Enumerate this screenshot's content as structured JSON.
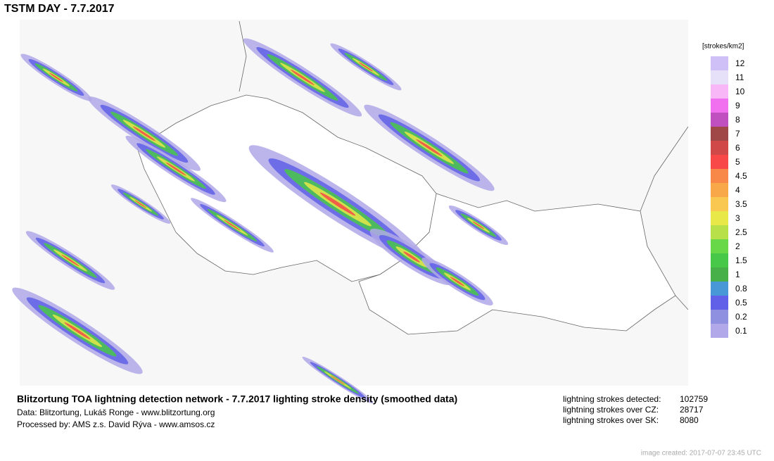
{
  "header": {
    "title": "TSTM DAY - 7.7.2017"
  },
  "legend": {
    "unit": "[strokes/km2]",
    "items": [
      {
        "label": "12",
        "color": "#d0c0f8"
      },
      {
        "label": "11",
        "color": "#e6e0f8"
      },
      {
        "label": "10",
        "color": "#f8b8f8"
      },
      {
        "label": "9",
        "color": "#f070f0"
      },
      {
        "label": "8",
        "color": "#c050c0"
      },
      {
        "label": "7",
        "color": "#a04848"
      },
      {
        "label": "6",
        "color": "#d04848"
      },
      {
        "label": "5",
        "color": "#f84848"
      },
      {
        "label": "4.5",
        "color": "#f88848"
      },
      {
        "label": "4",
        "color": "#f8a848"
      },
      {
        "label": "3.5",
        "color": "#f8c850"
      },
      {
        "label": "3",
        "color": "#e8e848"
      },
      {
        "label": "2.5",
        "color": "#b8e048"
      },
      {
        "label": "2",
        "color": "#68d848"
      },
      {
        "label": "1.5",
        "color": "#48c848"
      },
      {
        "label": "1",
        "color": "#48b048"
      },
      {
        "label": "0.8",
        "color": "#4898d8"
      },
      {
        "label": "0.5",
        "color": "#6060e8"
      },
      {
        "label": "0.2",
        "color": "#9090e0"
      },
      {
        "label": "0.1",
        "color": "#b0a8e8"
      }
    ]
  },
  "footer": {
    "heading": "Blitzortung TOA lightning detection network - 7.7.2017  lighting stroke density (smoothed data)",
    "lines": [
      "Data: Blitzortung, Lukáš Ronge - www.blitzortung.org",
      "Processed by: AMS z.s. David Rýva - www.amsos.cz"
    ],
    "stats": [
      {
        "label": "lightning strokes detected:",
        "value": "102759"
      },
      {
        "label": "lightning strokes over CZ:",
        "value": "28717"
      },
      {
        "label": "lightning strokes over SK:",
        "value": "8080"
      }
    ],
    "created": "image created: 2017-07-07 23:45 UTC"
  }
}
